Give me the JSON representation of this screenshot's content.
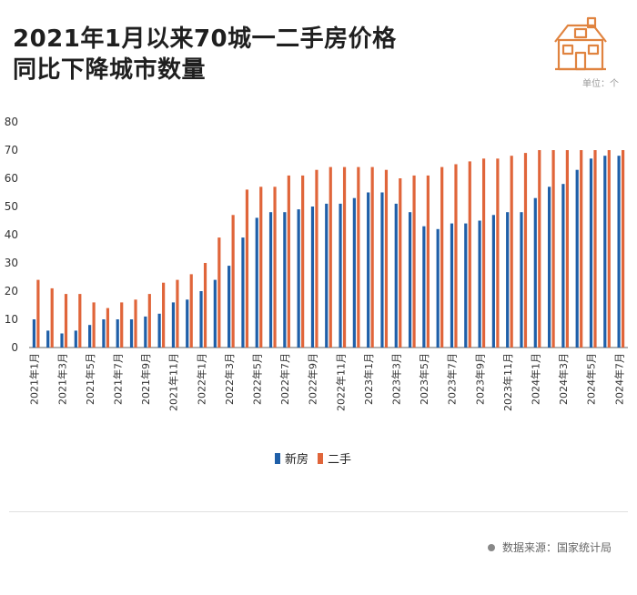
{
  "header": {
    "title_line1": "2021年1月以来70城一二手房价格",
    "title_line2": "同比下降城市数量",
    "unit": "单位：个"
  },
  "legend": {
    "new_label": "新房",
    "second_label": "二手"
  },
  "footer": {
    "source": "数据来源：国家统计局"
  },
  "colors": {
    "new": "#1f5fa8",
    "second": "#e0653a",
    "axis": "#333333",
    "grid": "#dddddd"
  },
  "icons": {
    "logo": "house-icon"
  },
  "chart_data": {
    "type": "bar",
    "ylim": [
      0,
      80
    ],
    "yticks": [
      0,
      10,
      20,
      30,
      40,
      50,
      60,
      70,
      80
    ],
    "categories": [
      "2021年1月",
      "2021年2月",
      "2021年3月",
      "2021年4月",
      "2021年5月",
      "2021年6月",
      "2021年7月",
      "2021年8月",
      "2021年9月",
      "2021年10月",
      "2021年11月",
      "2021年12月",
      "2022年1月",
      "2022年2月",
      "2022年3月",
      "2022年4月",
      "2022年5月",
      "2022年6月",
      "2022年7月",
      "2022年8月",
      "2022年9月",
      "2022年10月",
      "2022年11月",
      "2022年12月",
      "2023年1月",
      "2023年2月",
      "2023年3月",
      "2023年4月",
      "2023年5月",
      "2023年6月",
      "2023年7月",
      "2023年8月",
      "2023年9月",
      "2023年10月",
      "2023年11月",
      "2023年12月",
      "2024年1月",
      "2024年2月",
      "2024年3月",
      "2024年4月",
      "2024年5月",
      "2024年6月",
      "2024年7月"
    ],
    "series": [
      {
        "name": "新房",
        "values": [
          10,
          6,
          5,
          6,
          8,
          10,
          10,
          10,
          11,
          12,
          16,
          17,
          20,
          24,
          29,
          39,
          46,
          48,
          48,
          49,
          50,
          51,
          51,
          53,
          55,
          55,
          51,
          48,
          43,
          42,
          44,
          44,
          45,
          47,
          48,
          48,
          53,
          57,
          58,
          63,
          67,
          68,
          68
        ]
      },
      {
        "name": "二手",
        "values": [
          24,
          21,
          19,
          19,
          16,
          14,
          16,
          17,
          19,
          23,
          24,
          26,
          30,
          39,
          47,
          56,
          57,
          57,
          61,
          61,
          63,
          64,
          64,
          64,
          64,
          63,
          60,
          61,
          61,
          64,
          65,
          66,
          67,
          67,
          68,
          69,
          70,
          70,
          70,
          70,
          70,
          70,
          70
        ]
      }
    ]
  }
}
